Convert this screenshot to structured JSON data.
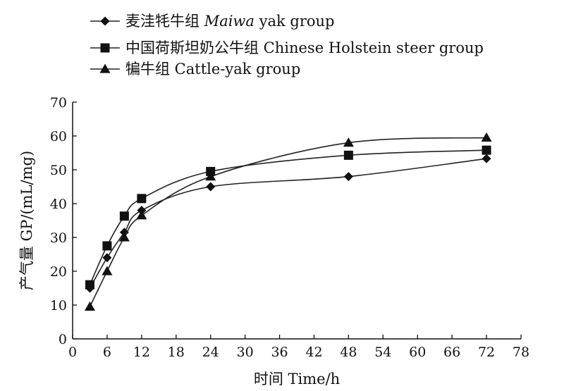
{
  "chart_data": {
    "type": "line",
    "xlabel": "时间  Time/h",
    "ylabel": "产气量  GP/(mL/mg)",
    "xlim": [
      0,
      78
    ],
    "ylim": [
      0,
      70
    ],
    "xticks": [
      "0",
      "6",
      "12",
      "18",
      "24",
      "30",
      "36",
      "42",
      "48",
      "54",
      "60",
      "66",
      "72",
      "78"
    ],
    "yticks": [
      "0",
      "10",
      "20",
      "30",
      "40",
      "50",
      "60",
      "70"
    ],
    "grid": false,
    "legend_position": "top-left",
    "series": [
      {
        "name_prefix": "麦洼牦牛组 ",
        "name_italic": "Maiwa",
        "name_suffix": " yak group",
        "marker": "diamond",
        "x": [
          3,
          6,
          9,
          12,
          24,
          48,
          72
        ],
        "y": [
          15,
          24,
          31.5,
          38,
          45,
          48,
          53.3
        ]
      },
      {
        "name_prefix": "中国荷斯坦奶公牛组 Chinese Holstein steer group",
        "name_italic": "",
        "name_suffix": "",
        "marker": "square",
        "x": [
          3,
          6,
          9,
          12,
          24,
          48,
          72
        ],
        "y": [
          16,
          27.5,
          36.3,
          41.5,
          49.5,
          54.3,
          55.8
        ]
      },
      {
        "name_prefix": "犏牛组 Cattle-yak group",
        "name_italic": "",
        "name_suffix": "",
        "marker": "triangle",
        "x": [
          3,
          6,
          9,
          12,
          24,
          48,
          72
        ],
        "y": [
          9.5,
          20,
          30,
          36.5,
          48,
          58,
          59.5
        ]
      }
    ]
  }
}
